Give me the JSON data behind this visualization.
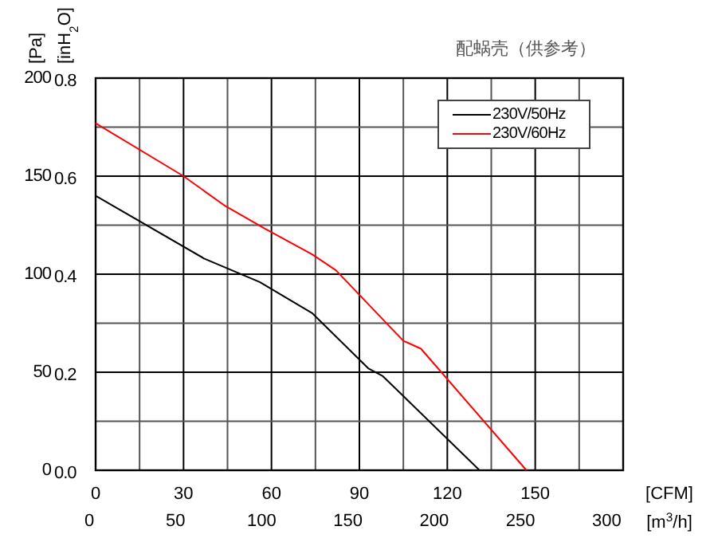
{
  "chart_data": {
    "type": "line",
    "title": "配蜗壳（供参考）",
    "xlabel": "[CFM]",
    "x2label": "[m$^{3}$/h]",
    "ylabel": "[Pa]",
    "y2label": "[inH$_{2}$O]",
    "xlim": [
      0,
      180
    ],
    "xticks": [
      0,
      {
        "value": 15,
        "label": null
      },
      30,
      {
        "value": 45,
        "label": null
      },
      60,
      {
        "value": 75,
        "label": null
      },
      90,
      {
        "value": 105,
        "label": null
      },
      120,
      {
        "value": 135,
        "label": null
      },
      150,
      {
        "value": 165,
        "label": null
      }
    ],
    "x2lim": [
      0,
      305.8
    ],
    "x2ticks": [
      0,
      50,
      100,
      150,
      200,
      250,
      300
    ],
    "ylim": [
      0,
      200
    ],
    "yticks": [
      0,
      {
        "value": 25,
        "label": null
      },
      50,
      {
        "value": 75,
        "label": null
      },
      100,
      {
        "value": 125,
        "label": null
      },
      150,
      {
        "value": 175,
        "label": null
      },
      200
    ],
    "y2lim": [
      0,
      0.8
    ],
    "y2ticks": [
      {
        "value": 0,
        "label": "0.0"
      },
      0.2,
      0.4,
      0.6,
      0.8
    ],
    "grid": true,
    "legend": "top right",
    "line_style": "solid",
    "marker": "none",
    "series": [
      {
        "name": "230V/50Hz",
        "color": "#000000",
        "x": [
          0,
          37,
          56,
          74,
          93,
          98,
          131
        ],
        "values": [
          140,
          108,
          96,
          80,
          52,
          48,
          0
        ]
      },
      {
        "name": "230V/60Hz",
        "color": "#ff0000",
        "x": [
          0,
          30,
          44,
          58,
          74,
          82,
          105,
          111,
          147
        ],
        "values": [
          177,
          150,
          135,
          123,
          110,
          102,
          66,
          62,
          0
        ]
      }
    ]
  }
}
